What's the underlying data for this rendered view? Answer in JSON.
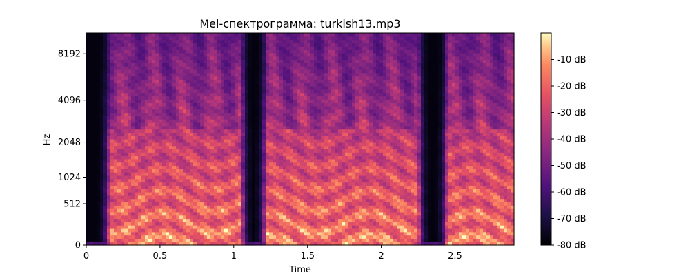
{
  "chart_data": {
    "type": "heatmap",
    "title": "Mel-спектрограмма: turkish13.mp3",
    "xlabel": "Time",
    "ylabel": "Hz",
    "x_range": [
      0,
      2.9
    ],
    "x_ticks": [
      0,
      0.5,
      1,
      1.5,
      2,
      2.5
    ],
    "x_tick_labels": [
      "0",
      "0.5",
      "1",
      "1.5",
      "2",
      "2.5"
    ],
    "y_scale": "mel",
    "y_ticks": [
      0,
      512,
      1024,
      2048,
      4096,
      8192
    ],
    "y_tick_labels": [
      "0",
      "512",
      "1024",
      "2048",
      "4096",
      "8192"
    ],
    "colormap": "magma",
    "colorbar": {
      "range": [
        -80,
        0
      ],
      "ticks": [
        -10,
        -20,
        -30,
        -40,
        -50,
        -60,
        -70,
        -80
      ],
      "tick_labels": [
        "-10 dB",
        "-20 dB",
        "-30 dB",
        "-40 dB",
        "-50 dB",
        "-60 dB",
        "-70 dB",
        "-80 dB"
      ]
    },
    "grid": false,
    "segments": [
      {
        "start": 0.16,
        "end": 1.05,
        "level": "loud speech"
      },
      {
        "start": 1.22,
        "end": 2.25,
        "level": "loud speech"
      },
      {
        "start": 2.45,
        "end": 2.9,
        "level": "loud speech"
      }
    ],
    "silences": [
      {
        "start": 0.0,
        "end": 0.16
      },
      {
        "start": 1.1,
        "end": 1.2
      },
      {
        "start": 2.28,
        "end": 2.42
      }
    ]
  }
}
